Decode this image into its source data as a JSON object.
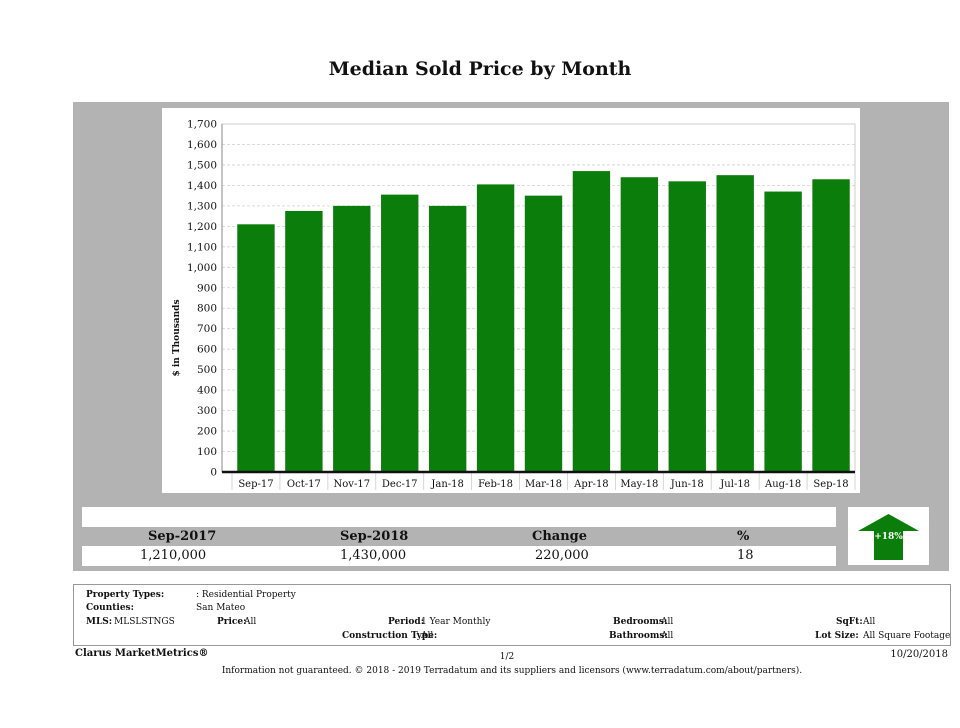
{
  "title": "Median Sold Price by Month",
  "chart_data": {
    "type": "bar",
    "title": "Median Sold Price by Month",
    "ylabel": "$ in Thousands",
    "xlabel": "",
    "categories": [
      "Sep-17",
      "Oct-17",
      "Nov-17",
      "Dec-17",
      "Jan-18",
      "Feb-18",
      "Mar-18",
      "Apr-18",
      "May-18",
      "Jun-18",
      "Jul-18",
      "Aug-18",
      "Sep-18"
    ],
    "values": [
      1210,
      1275,
      1300,
      1355,
      1300,
      1405,
      1350,
      1470,
      1440,
      1420,
      1450,
      1370,
      1430
    ],
    "ylim": [
      0,
      1700
    ],
    "yticks": [
      0,
      100,
      200,
      300,
      400,
      500,
      600,
      700,
      800,
      900,
      1000,
      1100,
      1200,
      1300,
      1400,
      1500,
      1600,
      1700
    ],
    "ytick_labels": [
      "0",
      "100",
      "200",
      "300",
      "400",
      "500",
      "600",
      "700",
      "800",
      "900",
      "1,000",
      "1,100",
      "1,200",
      "1,300",
      "1,400",
      "1,500",
      "1,600",
      "1,700"
    ],
    "grid": true,
    "bar_color": "#0a7d0a"
  },
  "stats": {
    "headers": [
      "Sep-2017",
      "Sep-2018",
      "Change",
      "%"
    ],
    "values": [
      "1,210,000",
      "1,430,000",
      "220,000",
      "18"
    ]
  },
  "badge": {
    "label": "+18%",
    "icon": "arrow-up-icon",
    "color": "#0a7d0a"
  },
  "filters": {
    "property_types_label": "Property Types:",
    "property_types_value": ": Residential Property",
    "counties_label": "Counties:",
    "counties_value": "San Mateo",
    "mls_label": "MLS:",
    "mls_value": "MLSLSTNGS",
    "price_label": "Price:",
    "price_value": "All",
    "period_label": "Period:",
    "period_value": "1 Year Monthly",
    "construction_label": "Construction Type:",
    "construction_value": "All",
    "bedrooms_label": "Bedrooms:",
    "bedrooms_value": "All",
    "bathrooms_label": "Bathrooms:",
    "bathrooms_value": "All",
    "sqft_label": "SqFt:",
    "sqft_value": "All",
    "lotsize_label": "Lot Size:",
    "lotsize_value": "All Square Footage"
  },
  "footer": {
    "brand": "Clarus MarketMetrics®",
    "page": "1/2",
    "date": "10/20/2018",
    "info": "Information not guaranteed. © 2018 - 2019 Terradatum and its suppliers and licensors (www.terradatum.com/about/partners)."
  }
}
